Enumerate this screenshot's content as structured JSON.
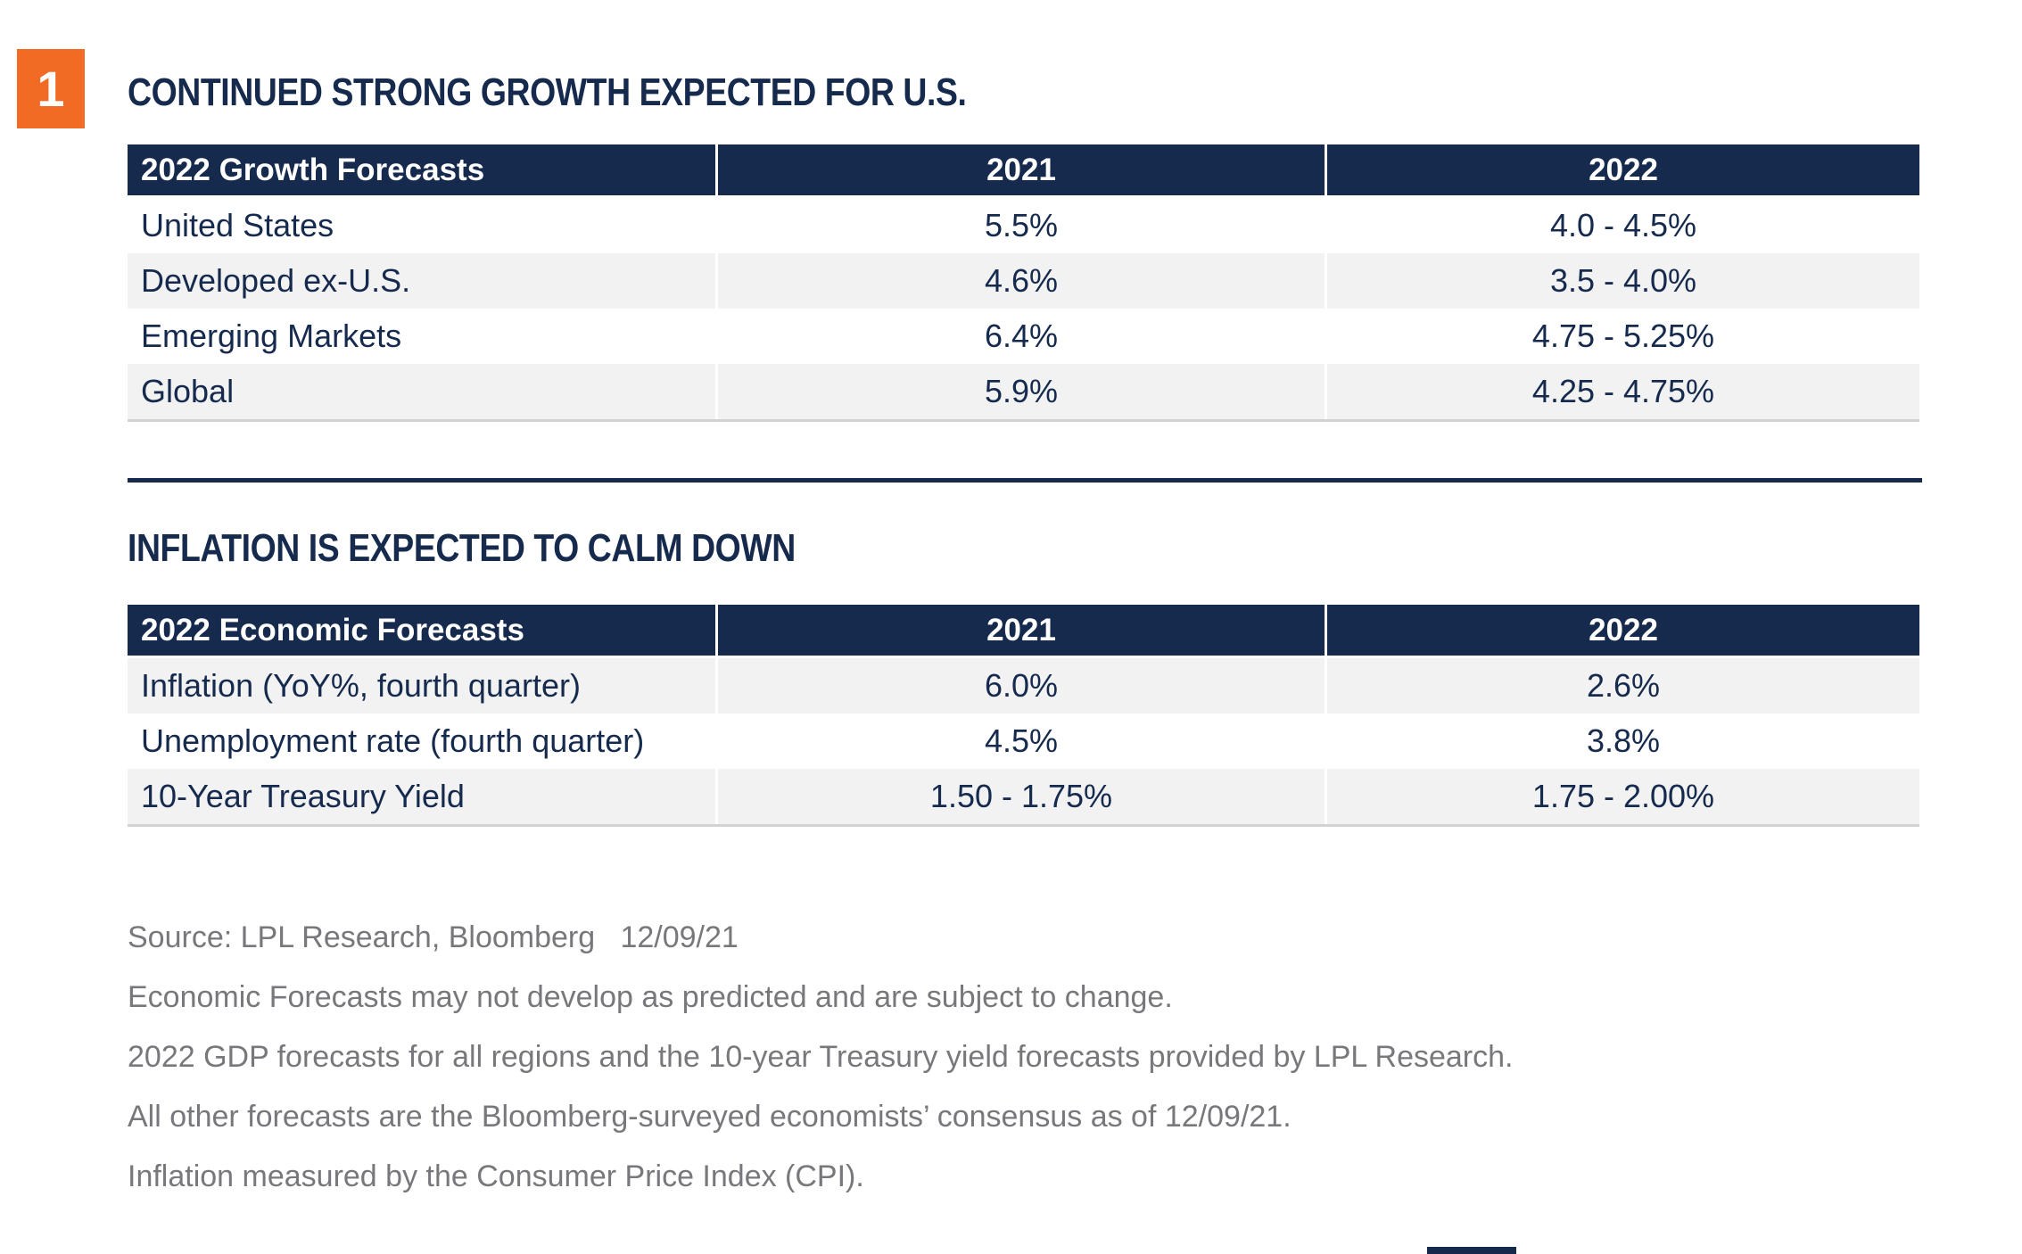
{
  "badge": {
    "number": "1"
  },
  "sections": [
    {
      "title": "CONTINUED STRONG GROWTH EXPECTED FOR U.S.",
      "table": {
        "headers": [
          "2022 Growth Forecasts",
          "2021",
          "2022"
        ],
        "rows": [
          [
            "United States",
            "5.5%",
            "4.0 - 4.5%"
          ],
          [
            "Developed ex-U.S.",
            "4.6%",
            "3.5 - 4.0%"
          ],
          [
            "Emerging Markets",
            "6.4%",
            "4.75 - 5.25%"
          ],
          [
            "Global",
            "5.9%",
            "4.25 - 4.75%"
          ]
        ]
      }
    },
    {
      "title": "INFLATION IS EXPECTED TO CALM DOWN",
      "table": {
        "headers": [
          "2022 Economic Forecasts",
          "2021",
          "2022"
        ],
        "rows": [
          [
            "Inflation (YoY%, fourth quarter)",
            "6.0%",
            "2.6%"
          ],
          [
            "Unemployment rate (fourth quarter)",
            "4.5%",
            "3.8%"
          ],
          [
            "10-Year Treasury Yield",
            "1.50 - 1.75%",
            "1.75 - 2.00%"
          ]
        ]
      }
    }
  ],
  "footnotes": [
    "Source: LPL Research, Bloomberg   12/09/21",
    "Economic Forecasts may not develop as predicted and are subject to change.",
    "2022 GDP forecasts for all regions and the 10-year Treasury yield forecasts provided by LPL Research.",
    "All other forecasts are the Bloomberg-surveyed economists’ consensus as of 12/09/21.",
    "Inflation measured by the Consumer Price Index (CPI)."
  ],
  "colors": {
    "navy": "#152A4D",
    "orange": "#F26B25",
    "row-shade": "#F2F2F3",
    "footnote-gray": "#77787B",
    "table-border": "#D2D2D4"
  }
}
